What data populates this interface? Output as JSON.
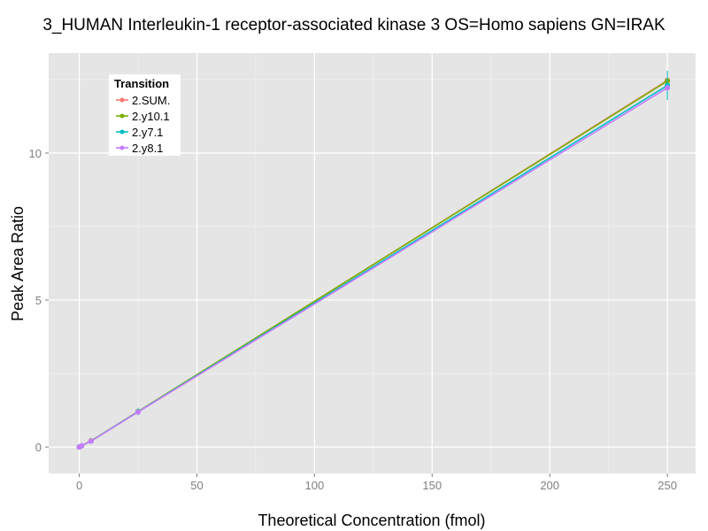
{
  "chart_data": {
    "type": "line",
    "title": "3_HUMAN Interleukin-1 receptor-associated kinase 3 OS=Homo sapiens GN=IRAK",
    "xlabel": "Theoretical Concentration (fmol)",
    "ylabel": "Peak Area Ratio",
    "xlim": [
      -13,
      262
    ],
    "ylim": [
      -0.9,
      13.4
    ],
    "xticks": [
      0,
      50,
      100,
      150,
      200,
      250
    ],
    "xtick_labels": [
      "0",
      "50",
      "100",
      "150",
      "200",
      "250"
    ],
    "yticks": [
      0,
      5,
      10
    ],
    "ytick_labels": [
      "0",
      "5",
      "10"
    ],
    "grid": true,
    "legend": {
      "title": "Transition",
      "placement": "top-left"
    },
    "x": [
      0,
      1,
      5,
      25,
      250
    ],
    "series": [
      {
        "name": "2.SUM.",
        "color": "#F8766D",
        "values": [
          0.0,
          0.04,
          0.21,
          1.2,
          12.47
        ],
        "err": [
          0,
          0,
          0,
          0.05,
          0.1
        ]
      },
      {
        "name": "2.y10.1",
        "color": "#7CAE00",
        "values": [
          0.0,
          0.04,
          0.21,
          1.21,
          12.45
        ],
        "err": [
          0,
          0,
          0,
          0.05,
          0.1
        ]
      },
      {
        "name": "2.y7.1",
        "color": "#00BFC4",
        "values": [
          0.0,
          0.04,
          0.2,
          1.2,
          12.3
        ],
        "err": [
          0,
          0,
          0,
          0.12,
          0.5
        ]
      },
      {
        "name": "2.y8.1",
        "color": "#C77CFF",
        "values": [
          0.0,
          0.04,
          0.2,
          1.19,
          12.22
        ],
        "err": [
          0,
          0,
          0,
          0.05,
          0.1
        ]
      }
    ]
  }
}
